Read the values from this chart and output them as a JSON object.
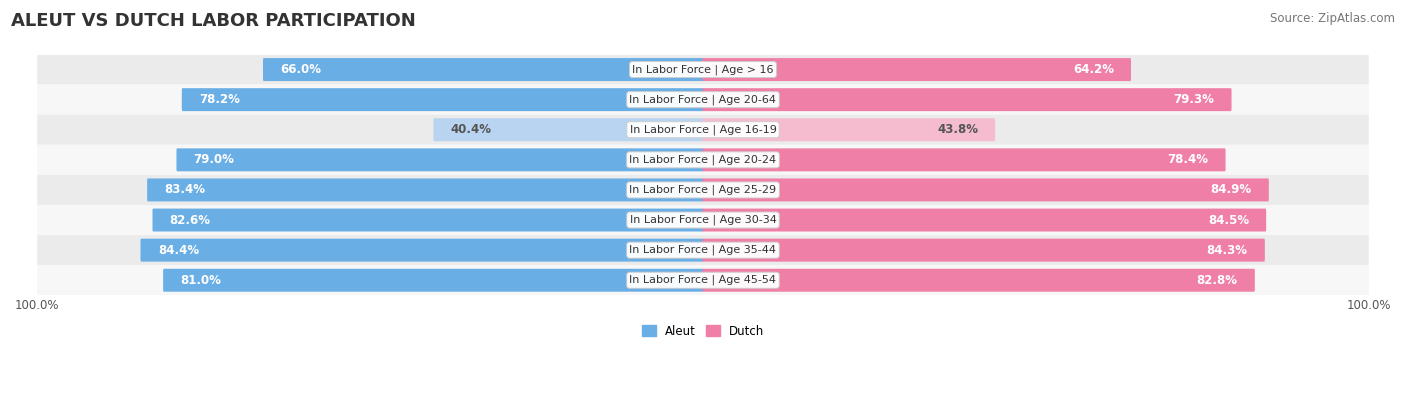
{
  "title": "ALEUT VS DUTCH LABOR PARTICIPATION",
  "source": "Source: ZipAtlas.com",
  "categories": [
    "In Labor Force | Age > 16",
    "In Labor Force | Age 20-64",
    "In Labor Force | Age 16-19",
    "In Labor Force | Age 20-24",
    "In Labor Force | Age 25-29",
    "In Labor Force | Age 30-34",
    "In Labor Force | Age 35-44",
    "In Labor Force | Age 45-54"
  ],
  "aleut_values": [
    66.0,
    78.2,
    40.4,
    79.0,
    83.4,
    82.6,
    84.4,
    81.0
  ],
  "dutch_values": [
    64.2,
    79.3,
    43.8,
    78.4,
    84.9,
    84.5,
    84.3,
    82.8
  ],
  "aleut_color": "#6aaee6",
  "aleut_color_light": "#b8d4f0",
  "dutch_color": "#f07fa8",
  "dutch_color_light": "#f5bcd0",
  "row_bg_odd": "#ebebeb",
  "row_bg_even": "#f7f7f7",
  "max_value": 100.0,
  "bar_height": 0.58,
  "legend_labels": [
    "Aleut",
    "Dutch"
  ],
  "title_fontsize": 13,
  "label_fontsize": 8.0,
  "value_fontsize": 8.5,
  "axis_fontsize": 8.5,
  "source_fontsize": 8.5,
  "light_threshold": 55
}
